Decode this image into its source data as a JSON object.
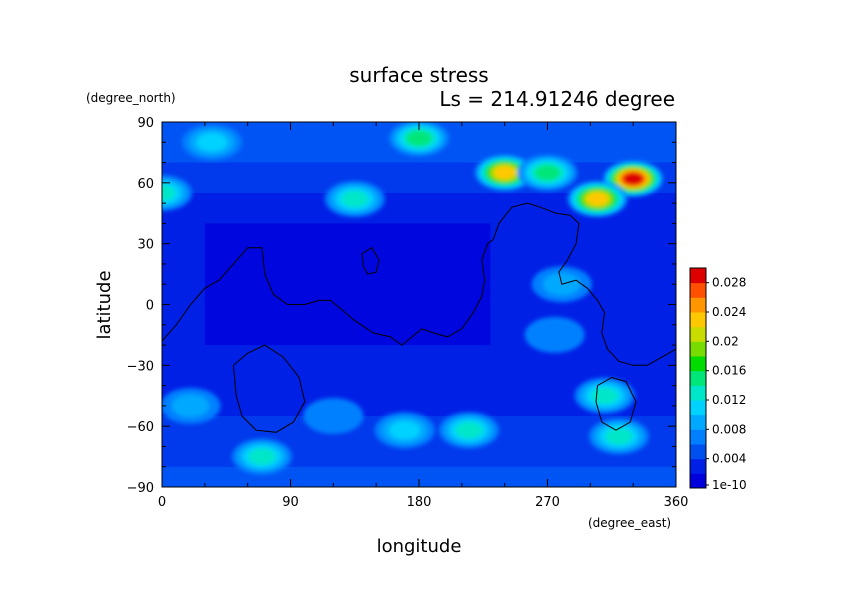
{
  "chart_data": {
    "type": "heatmap",
    "title": "surface stress",
    "subtitle": "Ls = 214.91246 degree",
    "xlabel": "longitude",
    "ylabel": "latitude",
    "x_unit": "(degree_east)",
    "y_unit": "(degree_north)",
    "xlim": [
      0,
      360
    ],
    "ylim": [
      -90,
      90
    ],
    "x_ticks": [
      "0",
      "90",
      "180",
      "270",
      "360"
    ],
    "y_ticks": [
      "90",
      "60",
      "30",
      "0",
      "−30",
      "−60",
      "−90"
    ],
    "colorbar": {
      "min_label": "1e-10",
      "labels": [
        "0.004",
        "0.008",
        "0.012",
        "0.016",
        "0.02",
        "0.024",
        "0.028"
      ],
      "levels": [
        0.002,
        0.004,
        0.006,
        0.008,
        0.01,
        0.012,
        0.014,
        0.016,
        0.018,
        0.02,
        0.022,
        0.024,
        0.026,
        0.028,
        0.03
      ],
      "colors": [
        "#0000dc",
        "#0020e6",
        "#0050f0",
        "#0080ff",
        "#00a8ff",
        "#00d2ff",
        "#00e6c8",
        "#00e678",
        "#00dc00",
        "#78dc00",
        "#c8dc00",
        "#ffc800",
        "#ff9600",
        "#ff5000",
        "#dc0000"
      ],
      "over_color": "#ffffff"
    },
    "hotspots": [
      {
        "lon": 35,
        "lat": 80,
        "value": 0.012
      },
      {
        "lon": 180,
        "lat": 82,
        "value": 0.016
      },
      {
        "lon": 240,
        "lat": 65,
        "value": 0.024
      },
      {
        "lon": 330,
        "lat": 62,
        "value": 0.03
      },
      {
        "lon": 305,
        "lat": 52,
        "value": 0.024
      },
      {
        "lon": 270,
        "lat": 65,
        "value": 0.016
      },
      {
        "lon": 135,
        "lat": 52,
        "value": 0.014
      },
      {
        "lon": 0,
        "lat": 55,
        "value": 0.014
      },
      {
        "lon": 310,
        "lat": -45,
        "value": 0.014
      },
      {
        "lon": 320,
        "lat": -65,
        "value": 0.014
      },
      {
        "lon": 215,
        "lat": -62,
        "value": 0.014
      },
      {
        "lon": 170,
        "lat": -62,
        "value": 0.012
      },
      {
        "lon": 70,
        "lat": -75,
        "value": 0.014
      },
      {
        "lon": 20,
        "lat": -50,
        "value": 0.01
      },
      {
        "lon": 120,
        "lat": -55,
        "value": 0.008
      },
      {
        "lon": 280,
        "lat": 10,
        "value": 0.01
      },
      {
        "lon": 275,
        "lat": -15,
        "value": 0.008
      }
    ],
    "contours": [
      [
        [
          0,
          -18
        ],
        [
          10,
          -10
        ],
        [
          20,
          0
        ],
        [
          30,
          8
        ],
        [
          40,
          12
        ],
        [
          50,
          20
        ],
        [
          60,
          28
        ],
        [
          70,
          28
        ],
        [
          72,
          15
        ],
        [
          78,
          5
        ],
        [
          88,
          0
        ],
        [
          100,
          0
        ],
        [
          110,
          2
        ],
        [
          118,
          2
        ],
        [
          125,
          -2
        ],
        [
          135,
          -8
        ],
        [
          148,
          -14
        ],
        [
          160,
          -16
        ],
        [
          168,
          -20
        ],
        [
          175,
          -16
        ],
        [
          182,
          -12
        ],
        [
          190,
          -14
        ],
        [
          200,
          -16
        ],
        [
          210,
          -12
        ],
        [
          218,
          -4
        ],
        [
          224,
          4
        ],
        [
          226,
          12
        ],
        [
          224,
          22
        ],
        [
          228,
          30
        ],
        [
          232,
          32
        ],
        [
          236,
          40
        ],
        [
          245,
          48
        ],
        [
          256,
          50
        ],
        [
          265,
          48
        ],
        [
          276,
          45
        ],
        [
          286,
          44
        ],
        [
          292,
          40
        ],
        [
          290,
          30
        ],
        [
          284,
          22
        ],
        [
          278,
          16
        ],
        [
          280,
          10
        ],
        [
          290,
          12
        ],
        [
          298,
          8
        ],
        [
          305,
          2
        ],
        [
          310,
          -4
        ],
        [
          308,
          -14
        ],
        [
          312,
          -22
        ],
        [
          320,
          -28
        ],
        [
          330,
          -30
        ],
        [
          340,
          -30
        ],
        [
          350,
          -26
        ],
        [
          360,
          -22
        ]
      ],
      [
        [
          50,
          -30
        ],
        [
          60,
          -24
        ],
        [
          72,
          -20
        ],
        [
          85,
          -26
        ],
        [
          96,
          -36
        ],
        [
          100,
          -48
        ],
        [
          92,
          -58
        ],
        [
          80,
          -63
        ],
        [
          66,
          -62
        ],
        [
          56,
          -55
        ],
        [
          52,
          -45
        ],
        [
          50,
          -30
        ]
      ],
      [
        [
          305,
          -40
        ],
        [
          315,
          -36
        ],
        [
          325,
          -38
        ],
        [
          332,
          -48
        ],
        [
          328,
          -58
        ],
        [
          318,
          -62
        ],
        [
          308,
          -58
        ],
        [
          304,
          -48
        ],
        [
          305,
          -40
        ]
      ],
      [
        [
          140,
          25
        ],
        [
          147,
          28
        ],
        [
          152,
          22
        ],
        [
          150,
          16
        ],
        [
          144,
          15
        ],
        [
          141,
          19
        ],
        [
          140,
          25
        ]
      ]
    ]
  }
}
